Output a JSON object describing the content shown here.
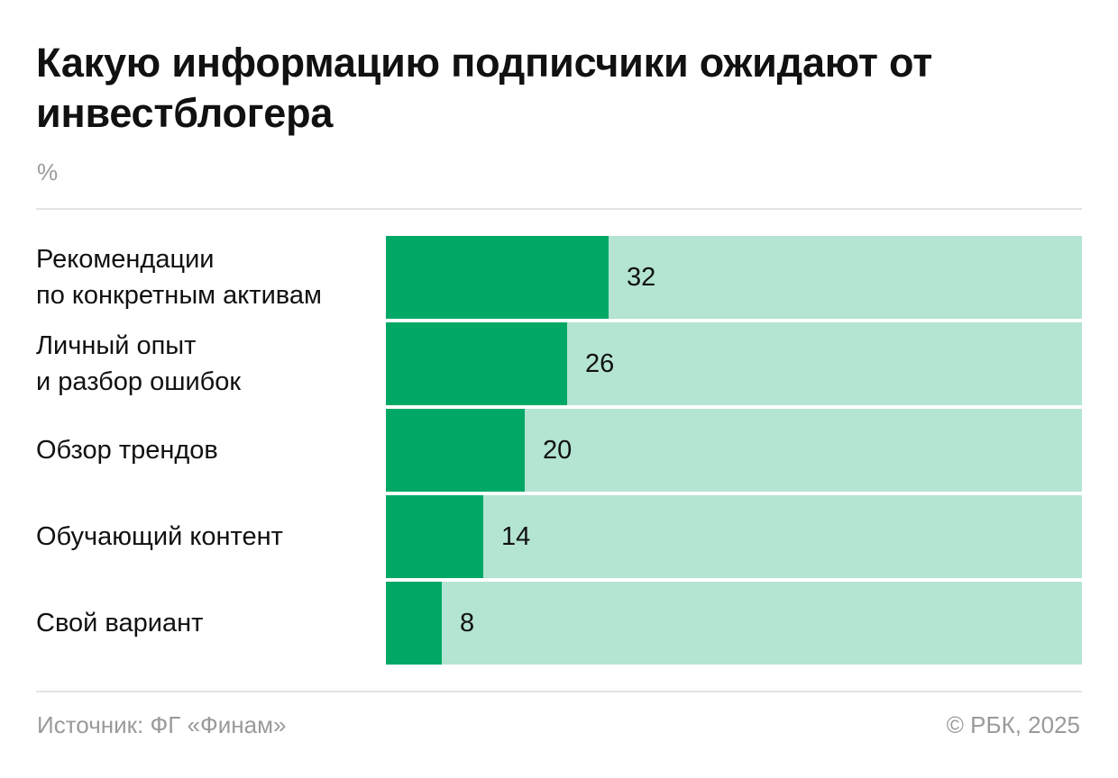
{
  "header": {
    "title": "Какую информацию подписчики ожидают от инвестблогера",
    "unit": "%"
  },
  "footer": {
    "source": "Источник: ФГ «Финам»",
    "copyright": "© РБК, 2025"
  },
  "colors": {
    "bar_fill": "#00a865",
    "bar_track": "#b4e4d2",
    "text": "#111111",
    "muted": "#9a9a9a"
  },
  "chart_data": {
    "type": "bar",
    "orientation": "horizontal",
    "title": "Какую информацию подписчики ожидают от инвестблогера",
    "ylabel": "%",
    "xlim": [
      0,
      100
    ],
    "categories": [
      "Рекомендации\nпо конкретным активам",
      "Личный опыт\nи разбор ошибок",
      "Обзор трендов",
      "Обучающий контент",
      "Свой вариант"
    ],
    "values": [
      32,
      26,
      20,
      14,
      8
    ],
    "value_labels": [
      "32",
      "26",
      "20",
      "14",
      "8"
    ]
  }
}
